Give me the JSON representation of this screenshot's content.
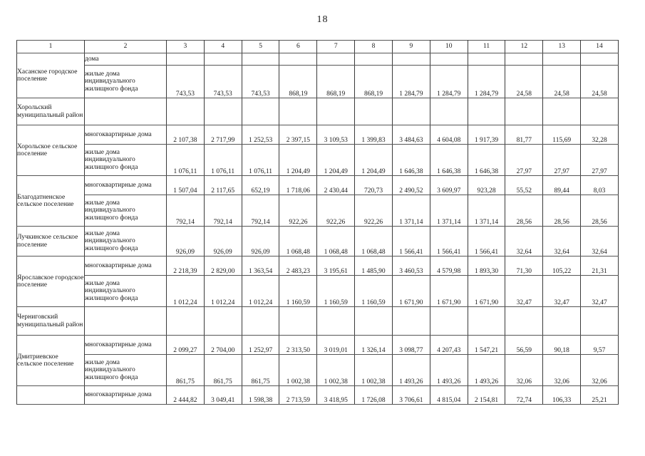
{
  "page": {
    "number": "18"
  },
  "table": {
    "header_row": [
      "1",
      "2",
      "3",
      "4",
      "5",
      "6",
      "7",
      "8",
      "9",
      "10",
      "11",
      "12",
      "13",
      "14"
    ],
    "rows": [
      {
        "s": "Хасанское городское поселение",
        "rs": 2,
        "t": "дома",
        "v": [
          "",
          "",
          "",
          "",
          "",
          "",
          "",
          "",
          "",
          "",
          "",
          ""
        ]
      },
      {
        "s": null,
        "rs": 0,
        "t": "жилые дома индивидуального жилищного фонда",
        "v": [
          "743,53",
          "743,53",
          "743,53",
          "868,19",
          "868,19",
          "868,19",
          "1 284,79",
          "1 284,79",
          "1 284,79",
          "24,58",
          "24,58",
          "24,58"
        ]
      },
      {
        "s": "Хорольский муниципальный район",
        "rs": 1,
        "t": "",
        "v": [
          "",
          "",
          "",
          "",
          "",
          "",
          "",
          "",
          "",
          "",
          "",
          ""
        ]
      },
      {
        "s": "Хорольское сельское поселение",
        "rs": 2,
        "t": "многоквартирные дома",
        "v": [
          "2 107,38",
          "2 717,99",
          "1 252,53",
          "2 397,15",
          "3 109,53",
          "1 399,83",
          "3 484,63",
          "4 604,08",
          "1 917,39",
          "81,77",
          "115,69",
          "32,28"
        ]
      },
      {
        "s": null,
        "rs": 0,
        "t": "жилые дома индивидуального жилищного фонда",
        "v": [
          "1 076,11",
          "1 076,11",
          "1 076,11",
          "1 204,49",
          "1 204,49",
          "1 204,49",
          "1 646,38",
          "1 646,38",
          "1 646,38",
          "27,97",
          "27,97",
          "27,97"
        ]
      },
      {
        "s": "Благодатненское сельское поселение",
        "rs": 2,
        "t": "многоквартирные дома",
        "v": [
          "1 507,04",
          "2 117,65",
          "652,19",
          "1 718,06",
          "2 430,44",
          "720,73",
          "2 490,52",
          "3 609,97",
          "923,28",
          "55,52",
          "89,44",
          "8,03"
        ]
      },
      {
        "s": null,
        "rs": 0,
        "t": "жилые дома индивидуального жилищного фонда",
        "v": [
          "792,14",
          "792,14",
          "792,14",
          "922,26",
          "922,26",
          "922,26",
          "1 371,14",
          "1 371,14",
          "1 371,14",
          "28,56",
          "28,56",
          "28,56"
        ]
      },
      {
        "s": "Лучкинское сельское поселение",
        "rs": 1,
        "t": "жилые дома индивидуального жилищного фонда",
        "v": [
          "926,09",
          "926,09",
          "926,09",
          "1 068,48",
          "1 068,48",
          "1 068,48",
          "1 566,41",
          "1 566,41",
          "1 566,41",
          "32,64",
          "32,64",
          "32,64"
        ]
      },
      {
        "s": "Ярославское городское поселение",
        "rs": 2,
        "t": "многоквартирные дома",
        "v": [
          "2 218,39",
          "2 829,00",
          "1 363,54",
          "2 483,23",
          "3 195,61",
          "1 485,90",
          "3 460,53",
          "4 579,98",
          "1 893,30",
          "71,30",
          "105,22",
          "21,31"
        ]
      },
      {
        "s": null,
        "rs": 0,
        "t": "жилые дома индивидуального жилищного фонда",
        "v": [
          "1 012,24",
          "1 012,24",
          "1 012,24",
          "1 160,59",
          "1 160,59",
          "1 160,59",
          "1 671,90",
          "1 671,90",
          "1 671,90",
          "32,47",
          "32,47",
          "32,47"
        ]
      },
      {
        "s": "Черниговский муниципальный район",
        "rs": 1,
        "t": "",
        "v": [
          "",
          "",
          "",
          "",
          "",
          "",
          "",
          "",
          "",
          "",
          "",
          ""
        ]
      },
      {
        "s": "Дмитриевское сельское поселение",
        "rs": 2,
        "t": "многоквартирные дома",
        "v": [
          "2 099,27",
          "2 704,00",
          "1 252,97",
          "2 313,50",
          "3 019,01",
          "1 326,14",
          "3 098,77",
          "4 207,43",
          "1 547,21",
          "56,59",
          "90,18",
          "9,57"
        ]
      },
      {
        "s": null,
        "rs": 0,
        "t": "жилые дома индивидуального жилищного фонда",
        "v": [
          "861,75",
          "861,75",
          "861,75",
          "1 002,38",
          "1 002,38",
          "1 002,38",
          "1 493,26",
          "1 493,26",
          "1 493,26",
          "32,06",
          "32,06",
          "32,06"
        ]
      },
      {
        "s": "",
        "rs": 1,
        "t": "многоквартирные дома",
        "v": [
          "2 444,82",
          "3 049,41",
          "1 598,38",
          "2 713,59",
          "3 418,95",
          "1 726,08",
          "3 706,61",
          "4 815,04",
          "2 154,81",
          "72,74",
          "106,33",
          "25,21"
        ]
      }
    ]
  }
}
